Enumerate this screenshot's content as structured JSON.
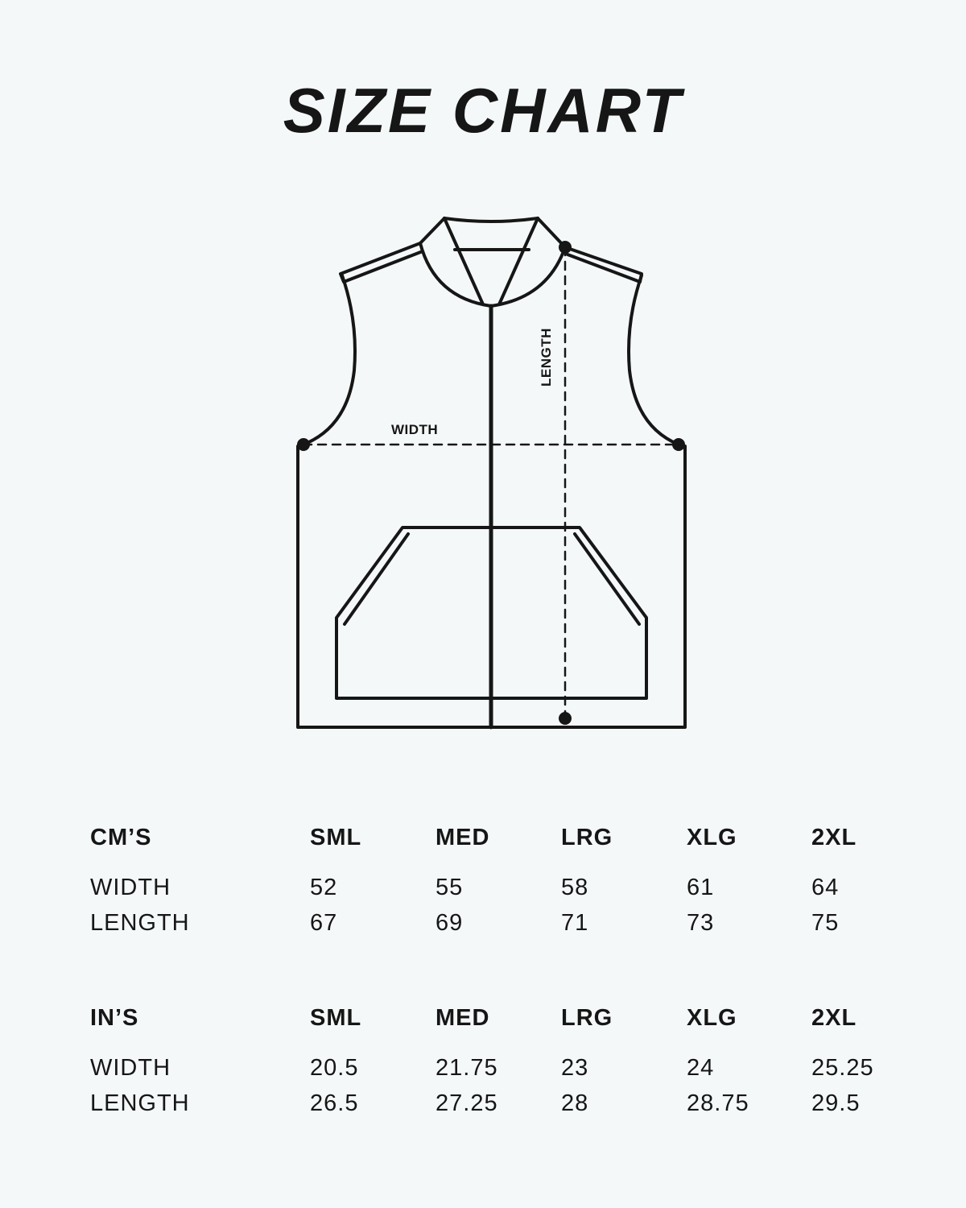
{
  "title": "SIZE CHART",
  "diagram": {
    "width_label": "WIDTH",
    "length_label": "LENGTH"
  },
  "tables": [
    {
      "unit": "CM’S",
      "sizes": [
        "SML",
        "MED",
        "LRG",
        "XLG",
        "2XL"
      ],
      "rows": [
        {
          "label": "WIDTH",
          "values": [
            "52",
            "55",
            "58",
            "61",
            "64"
          ]
        },
        {
          "label": "LENGTH",
          "values": [
            "67",
            "69",
            "71",
            "73",
            "75"
          ]
        }
      ]
    },
    {
      "unit": "IN’S",
      "sizes": [
        "SML",
        "MED",
        "LRG",
        "XLG",
        "2XL"
      ],
      "rows": [
        {
          "label": "WIDTH",
          "values": [
            "20.5",
            "21.75",
            "23",
            "24",
            "25.25"
          ]
        },
        {
          "label": "LENGTH",
          "values": [
            "26.5",
            "27.25",
            "28",
            "28.75",
            "29.5"
          ]
        }
      ]
    }
  ]
}
